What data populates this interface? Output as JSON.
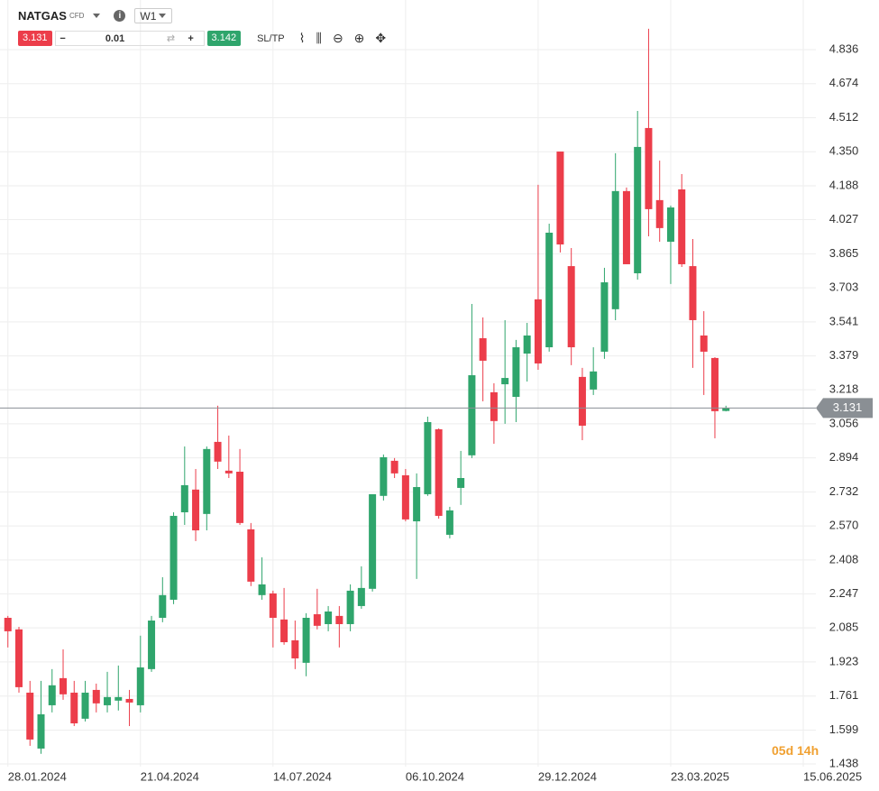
{
  "toolbar": {
    "symbol": "NATGAS",
    "instrument_type": "CFD",
    "timeframe": "W1",
    "sell_price": 3.131,
    "volume": 0.01,
    "buy_price": 3.142,
    "sl_tp": "SL/TP"
  },
  "countdown": "05d 14h",
  "chart_data": {
    "type": "candlestick",
    "x": [
      "28.01.2024",
      "04.02.2024",
      "11.02.2024",
      "18.02.2024",
      "25.02.2024",
      "03.03.2024",
      "10.03.2024",
      "17.03.2024",
      "24.03.2024",
      "31.03.2024",
      "07.04.2024",
      "14.04.2024",
      "21.04.2024",
      "28.04.2024",
      "05.05.2024",
      "12.05.2024",
      "19.05.2024",
      "26.05.2024",
      "02.06.2024",
      "09.06.2024",
      "16.06.2024",
      "23.06.2024",
      "30.06.2024",
      "07.07.2024",
      "14.07.2024",
      "21.07.2024",
      "28.07.2024",
      "04.08.2024",
      "11.08.2024",
      "18.08.2024",
      "25.08.2024",
      "01.09.2024",
      "08.09.2024",
      "15.09.2024",
      "22.09.2024",
      "29.09.2024",
      "06.10.2024",
      "13.10.2024",
      "20.10.2024",
      "27.10.2024",
      "03.11.2024",
      "10.11.2024",
      "17.11.2024",
      "24.11.2024",
      "01.12.2024",
      "08.12.2024",
      "15.12.2024",
      "22.12.2024",
      "29.12.2024",
      "05.01.2025",
      "12.01.2025",
      "19.01.2025",
      "26.01.2025",
      "02.02.2025",
      "09.02.2025",
      "16.02.2025",
      "23.02.2025",
      "02.03.2025",
      "09.03.2025",
      "16.03.2025",
      "23.03.2025",
      "30.03.2025",
      "06.04.2025",
      "13.04.2025",
      "20.04.2025",
      "27.04.2025"
    ],
    "open": [
      2.133,
      2.078,
      1.777,
      1.511,
      1.717,
      1.846,
      1.777,
      1.653,
      1.79,
      1.717,
      1.739,
      1.747,
      1.717,
      1.889,
      2.133,
      2.219,
      2.635,
      2.743,
      2.627,
      2.97,
      2.833,
      2.828,
      2.554,
      2.241,
      2.249,
      2.125,
      2.026,
      1.919,
      2.15,
      2.103,
      2.142,
      2.103,
      2.189,
      2.271,
      2.713,
      2.88,
      2.811,
      2.592,
      2.721,
      3.03,
      2.528,
      2.751,
      2.906,
      3.463,
      3.206,
      3.244,
      3.184,
      3.39,
      3.648,
      3.42,
      4.351,
      3.806,
      3.279,
      3.219,
      3.399,
      3.601,
      4.163,
      3.772,
      4.463,
      4.12,
      3.922,
      4.171,
      3.806,
      3.476,
      3.369,
      3.117
    ],
    "high": [
      2.142,
      2.09,
      1.833,
      1.833,
      1.889,
      1.983,
      1.833,
      1.833,
      1.82,
      1.876,
      1.906,
      1.79,
      2.048,
      2.142,
      2.326,
      2.635,
      2.948,
      2.841,
      2.948,
      3.142,
      3.0,
      2.936,
      2.584,
      2.421,
      2.262,
      2.275,
      2.12,
      2.155,
      2.271,
      2.189,
      2.189,
      2.292,
      2.378,
      2.721,
      2.91,
      2.893,
      2.841,
      2.82,
      3.09,
      3.034,
      2.661,
      2.927,
      3.626,
      3.562,
      3.249,
      3.549,
      3.455,
      3.536,
      4.193,
      4.008,
      4.351,
      3.892,
      3.322,
      3.42,
      3.798,
      4.343,
      4.18,
      4.544,
      4.935,
      4.308,
      4.094,
      4.244,
      3.935,
      3.592,
      3.373,
      3.142
    ],
    "low": [
      1.992,
      1.777,
      1.524,
      1.486,
      1.683,
      1.743,
      1.618,
      1.64,
      1.683,
      1.683,
      1.692,
      1.618,
      1.683,
      1.876,
      2.112,
      2.198,
      2.575,
      2.498,
      2.549,
      2.841,
      2.798,
      2.575,
      2.284,
      2.219,
      1.992,
      2.005,
      1.889,
      1.855,
      2.078,
      2.069,
      1.992,
      2.069,
      2.176,
      2.258,
      2.691,
      2.798,
      2.592,
      2.318,
      2.713,
      2.605,
      2.511,
      2.67,
      2.893,
      3.163,
      2.961,
      3.056,
      3.064,
      3.257,
      3.313,
      3.399,
      3.871,
      3.335,
      2.978,
      3.193,
      3.365,
      3.549,
      3.815,
      3.742,
      3.948,
      3.922,
      3.721,
      3.802,
      3.322,
      3.193,
      2.987,
      3.115
    ],
    "close": [
      2.069,
      1.803,
      1.554,
      1.674,
      1.812,
      1.769,
      1.631,
      1.777,
      1.726,
      1.756,
      1.756,
      1.73,
      1.897,
      2.12,
      2.241,
      2.618,
      2.764,
      2.549,
      2.936,
      2.876,
      2.82,
      2.584,
      2.305,
      2.292,
      2.133,
      2.017,
      1.94,
      2.133,
      2.095,
      2.163,
      2.103,
      2.262,
      2.275,
      2.721,
      2.897,
      2.82,
      2.601,
      2.755,
      3.064,
      2.618,
      2.644,
      2.798,
      3.287,
      3.356,
      3.069,
      3.274,
      3.42,
      3.476,
      3.343,
      3.965,
      3.909,
      3.42,
      3.047,
      3.305,
      3.729,
      4.163,
      3.815,
      4.373,
      4.077,
      3.987,
      4.085,
      3.815,
      3.549,
      3.399,
      3.116,
      3.131
    ],
    "up_color": "#2fa56c",
    "down_color": "#ec3d4a",
    "last_price": 3.131,
    "last_price_color": "#8a8f94",
    "xlim": [
      "23.01.2024",
      "23.06.2025"
    ],
    "xticks": [
      "28.01.2024",
      "21.04.2024",
      "14.07.2024",
      "06.10.2024",
      "29.12.2024",
      "23.03.2025",
      "15.06.2025"
    ],
    "ylim": [
      1.425,
      5.072
    ],
    "yticks": [
      4.836,
      4.674,
      4.512,
      {
        "value": 4.35,
        "label": "4.350"
      },
      4.188,
      4.027,
      3.865,
      3.703,
      3.541,
      3.379,
      3.218,
      3.056,
      2.894,
      2.732,
      {
        "value": 2.57,
        "label": "2.570"
      },
      2.408,
      2.247,
      2.085,
      1.923,
      1.761,
      1.599,
      1.438
    ],
    "grid": true
  }
}
